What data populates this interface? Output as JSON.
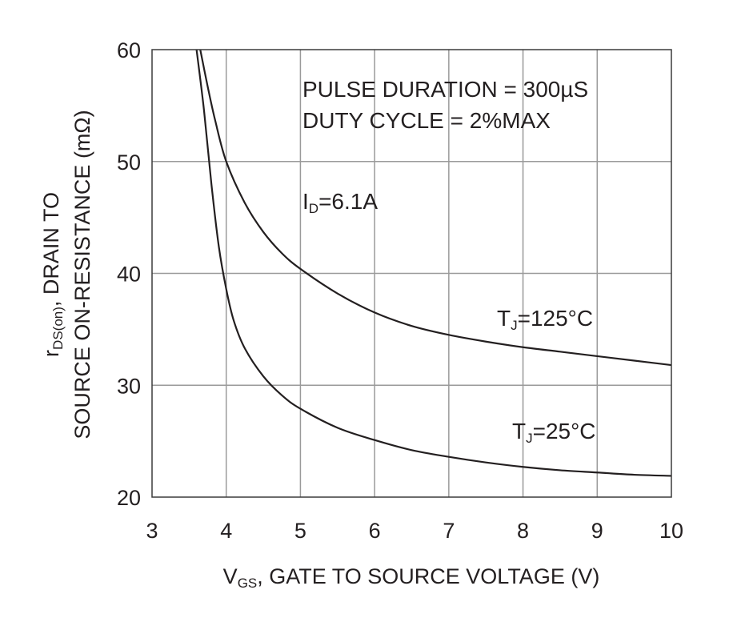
{
  "chart_data": {
    "type": "line",
    "xlabel": {
      "main": "V",
      "sub": "GS",
      "rest": ", GATE TO SOURCE VOLTAGE (V)"
    },
    "ylabel": {
      "line1": {
        "main": "r",
        "sub": "DS(on)",
        "rest": ", DRAIN TO"
      },
      "line2": "SOURCE ON-RESISTANCE (mΩ)"
    },
    "xlim": [
      3,
      10
    ],
    "ylim": [
      20,
      60
    ],
    "xticks": [
      "3",
      "4",
      "5",
      "6",
      "7",
      "8",
      "9",
      "10"
    ],
    "yticks": [
      "20",
      "30",
      "40",
      "50",
      "60"
    ],
    "grid": true,
    "annotations": {
      "pulse": "PULSE DURATION = 300µS",
      "duty": "DUTY CYCLE = 2%MAX",
      "id": {
        "main": "I",
        "sub": "D",
        "rest": "=6.1A"
      }
    },
    "series": [
      {
        "name": {
          "main": "T",
          "sub": "J",
          "rest": "=125°C"
        },
        "x": [
          3.65,
          3.75,
          3.85,
          4.0,
          4.25,
          4.5,
          4.75,
          5.0,
          5.5,
          6.0,
          6.5,
          7.0,
          7.5,
          8.0,
          8.5,
          9.0,
          9.5,
          10.0
        ],
        "y": [
          60.0,
          56.7,
          53.7,
          50.0,
          46.3,
          43.7,
          41.8,
          40.4,
          38.2,
          36.5,
          35.3,
          34.5,
          33.9,
          33.4,
          33.0,
          32.6,
          32.2,
          31.8
        ]
      },
      {
        "name": {
          "main": "T",
          "sub": "J",
          "rest": "=25°C"
        },
        "x": [
          3.6,
          3.7,
          3.8,
          3.9,
          4.0,
          4.1,
          4.25,
          4.5,
          4.75,
          5.0,
          5.5,
          6.0,
          6.5,
          7.0,
          7.5,
          8.0,
          8.5,
          9.0,
          9.5,
          10.0
        ],
        "y": [
          60.0,
          54.6,
          48.0,
          42.4,
          38.6,
          35.8,
          33.3,
          30.8,
          29.1,
          27.9,
          26.2,
          25.1,
          24.2,
          23.6,
          23.1,
          22.7,
          22.4,
          22.2,
          22.0,
          21.9
        ]
      }
    ]
  }
}
